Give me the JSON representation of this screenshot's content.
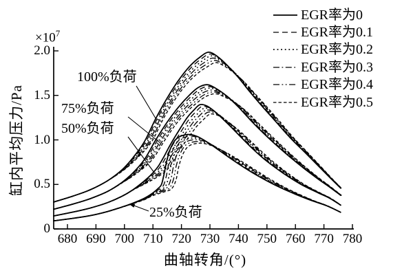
{
  "figure": {
    "x_title": "曲轴转角/(°)",
    "y_title": "缸内平均压力/Pa",
    "y_scale_base": "×10",
    "y_scale_exp": "7",
    "line_color": "#000000",
    "background": "#ffffff"
  },
  "legend": {
    "items": [
      {
        "label": "EGR率为0",
        "line": "solid"
      },
      {
        "label": "EGR率为0.1",
        "line": "dash"
      },
      {
        "label": "EGR率为0.2",
        "line": "dot"
      },
      {
        "label": "EGR率为0.3",
        "line": "dashdot"
      },
      {
        "label": "EGR率为0.4",
        "line": "dashdotdot"
      },
      {
        "label": "EGR率为0.5",
        "line": "shortdash"
      }
    ]
  },
  "annotations": [
    {
      "id": "load-100",
      "label": "100%负荷"
    },
    {
      "id": "load-75",
      "label": "75%负荷"
    },
    {
      "id": "load-50",
      "label": "50%负荷"
    },
    {
      "id": "load-25",
      "label": "25%负荷"
    }
  ],
  "chart_data": {
    "type": "line",
    "title": "",
    "xlabel": "曲轴转角/(°)",
    "ylabel": "缸内平均压力/Pa",
    "y_unit_scale": "×10⁷ Pa",
    "xlim": [
      675,
      781
    ],
    "ylim": [
      0,
      2.05
    ],
    "x_ticks": [
      680,
      690,
      700,
      710,
      720,
      730,
      740,
      750,
      760,
      770,
      780
    ],
    "x_tick_labels": [
      "680",
      "690",
      "700",
      "710",
      "720",
      "730",
      "740",
      "750",
      "760",
      "770",
      "780"
    ],
    "y_ticks": [
      0,
      0.5,
      1.0,
      1.5,
      2.0
    ],
    "y_tick_labels": [
      "0",
      "0.5",
      "1.0",
      "1.5",
      "2.0"
    ],
    "grid": false,
    "legend_position": "top-right",
    "egr_rates": [
      "0",
      "0.1",
      "0.2",
      "0.3",
      "0.4",
      "0.5"
    ],
    "series_groups": [
      {
        "load": "100%负荷",
        "peak_angle": 729.5,
        "peak_pressure_e7": 1.985,
        "ign_angle": 696,
        "rise_full_angle": 707,
        "egr_delays_deg": [
          0,
          0.5,
          1.0,
          1.5,
          2.0,
          2.5
        ],
        "egr_peak_scales": [
          1,
          0.99,
          0.979,
          0.967,
          0.954,
          0.941
        ],
        "anchors": [
          [
            675,
            0.3
          ],
          [
            682,
            0.37
          ],
          [
            688,
            0.44
          ],
          [
            694,
            0.54
          ],
          [
            699,
            0.66
          ],
          [
            703,
            0.8
          ],
          [
            707,
            0.98
          ],
          [
            711,
            1.24
          ],
          [
            715,
            1.47
          ],
          [
            719,
            1.67
          ],
          [
            723,
            1.83
          ],
          [
            726.5,
            1.93
          ],
          [
            729.5,
            1.985
          ],
          [
            732.5,
            1.94
          ],
          [
            736,
            1.84
          ],
          [
            740,
            1.7
          ],
          [
            744,
            1.54
          ],
          [
            748,
            1.39
          ],
          [
            753,
            1.21
          ],
          [
            758,
            1.03
          ],
          [
            763,
            0.87
          ],
          [
            768,
            0.71
          ],
          [
            772,
            0.58
          ],
          [
            776,
            0.455
          ]
        ]
      },
      {
        "load": "75%负荷",
        "peak_angle": 729,
        "peak_pressure_e7": 1.62,
        "ign_angle": 698,
        "rise_full_angle": 708,
        "egr_delays_deg": [
          0,
          0.6,
          1.2,
          1.8,
          2.4,
          3.0
        ],
        "egr_peak_scales": [
          1,
          0.988,
          0.976,
          0.963,
          0.95,
          0.937
        ],
        "anchors": [
          [
            675,
            0.22
          ],
          [
            682,
            0.28
          ],
          [
            688,
            0.34
          ],
          [
            694,
            0.42
          ],
          [
            699,
            0.52
          ],
          [
            703,
            0.63
          ],
          [
            707,
            0.78
          ],
          [
            711,
            1.0
          ],
          [
            715,
            1.2
          ],
          [
            719,
            1.37
          ],
          [
            723,
            1.51
          ],
          [
            726,
            1.59
          ],
          [
            729,
            1.62
          ],
          [
            732,
            1.58
          ],
          [
            736,
            1.49
          ],
          [
            740,
            1.37
          ],
          [
            744,
            1.23
          ],
          [
            748,
            1.1
          ],
          [
            753,
            0.95
          ],
          [
            758,
            0.81
          ],
          [
            763,
            0.68
          ],
          [
            768,
            0.56
          ],
          [
            772,
            0.47
          ],
          [
            776,
            0.375
          ]
        ]
      },
      {
        "load": "50%负荷",
        "peak_angle": 726.5,
        "peak_pressure_e7": 1.395,
        "ign_angle": 703,
        "rise_full_angle": 711,
        "egr_delays_deg": [
          0,
          0.7,
          1.4,
          2.1,
          2.8,
          3.5
        ],
        "egr_peak_scales": [
          1,
          0.986,
          0.971,
          0.956,
          0.94,
          0.924
        ],
        "anchors": [
          [
            675,
            0.145
          ],
          [
            682,
            0.19
          ],
          [
            688,
            0.235
          ],
          [
            694,
            0.295
          ],
          [
            699,
            0.365
          ],
          [
            703,
            0.44
          ],
          [
            707,
            0.54
          ],
          [
            710,
            0.63
          ],
          [
            712,
            0.71
          ],
          [
            714,
            0.82
          ],
          [
            716,
            0.94
          ],
          [
            719,
            1.1
          ],
          [
            722,
            1.25
          ],
          [
            724.5,
            1.34
          ],
          [
            726.5,
            1.395
          ],
          [
            729,
            1.38
          ],
          [
            732,
            1.31
          ],
          [
            736,
            1.19
          ],
          [
            740,
            1.06
          ],
          [
            745,
            0.9
          ],
          [
            750,
            0.76
          ],
          [
            756,
            0.62
          ],
          [
            762,
            0.5
          ],
          [
            768,
            0.405
          ],
          [
            772,
            0.345
          ],
          [
            776,
            0.265
          ]
        ]
      },
      {
        "load": "25%负荷",
        "peak_angle": 723,
        "peak_pressure_e7": 1.06,
        "ign_angle": 710.5,
        "rise_full_angle": 713.5,
        "egr_delays_deg": [
          0,
          0.85,
          1.7,
          2.55,
          3.4,
          4.25
        ],
        "egr_peak_scales": [
          1,
          0.982,
          0.963,
          0.945,
          0.926,
          0.908
        ],
        "anchors": [
          [
            675,
            0.09
          ],
          [
            682,
            0.12
          ],
          [
            688,
            0.15
          ],
          [
            694,
            0.195
          ],
          [
            699,
            0.245
          ],
          [
            703,
            0.29
          ],
          [
            707,
            0.345
          ],
          [
            710,
            0.405
          ],
          [
            712,
            0.46
          ],
          [
            713,
            0.5
          ],
          [
            713.8,
            0.6
          ],
          [
            714.8,
            0.76
          ],
          [
            716,
            0.89
          ],
          [
            717.5,
            0.985
          ],
          [
            719,
            1.03
          ],
          [
            721,
            1.055
          ],
          [
            723,
            1.06
          ],
          [
            725,
            1.045
          ],
          [
            727,
            1.015
          ],
          [
            730,
            0.955
          ],
          [
            734,
            0.865
          ],
          [
            738,
            0.775
          ],
          [
            743,
            0.67
          ],
          [
            748,
            0.575
          ],
          [
            754,
            0.475
          ],
          [
            760,
            0.39
          ],
          [
            766,
            0.315
          ],
          [
            771,
            0.26
          ],
          [
            776,
            0.185
          ]
        ]
      }
    ]
  }
}
